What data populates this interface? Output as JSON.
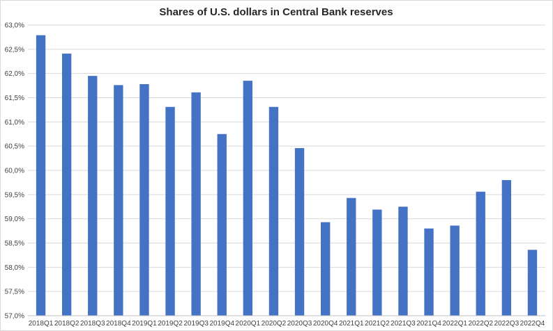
{
  "chart_data": {
    "type": "bar",
    "title": "Shares of U.S. dollars in Central Bank reserves",
    "xlabel": "",
    "ylabel": "",
    "ylim": [
      57.0,
      63.0
    ],
    "ytick_step": 0.5,
    "ytick_labels": [
      "57,0%",
      "57,5%",
      "58,0%",
      "58,5%",
      "59,0%",
      "59,5%",
      "60,0%",
      "60,5%",
      "61,0%",
      "61,5%",
      "62,0%",
      "62,5%",
      "63,0%"
    ],
    "grid": true,
    "legend": "none",
    "bar_color": "#4472c4",
    "categories": [
      "2018Q1",
      "2018Q2",
      "2018Q3",
      "2018Q4",
      "2019Q1",
      "2019Q2",
      "2019Q3",
      "2019Q4",
      "2020Q1",
      "2020Q2",
      "2020Q3",
      "2020Q4",
      "2021Q1",
      "2021Q2",
      "2021Q3",
      "2021Q4",
      "2022Q1",
      "2022Q2",
      "2022Q3",
      "2022Q4"
    ],
    "values": [
      62.79,
      62.41,
      61.95,
      61.76,
      61.78,
      61.31,
      61.61,
      60.75,
      61.85,
      61.31,
      60.46,
      58.93,
      59.43,
      59.19,
      59.25,
      58.8,
      58.86,
      59.56,
      59.8,
      58.36
    ]
  }
}
